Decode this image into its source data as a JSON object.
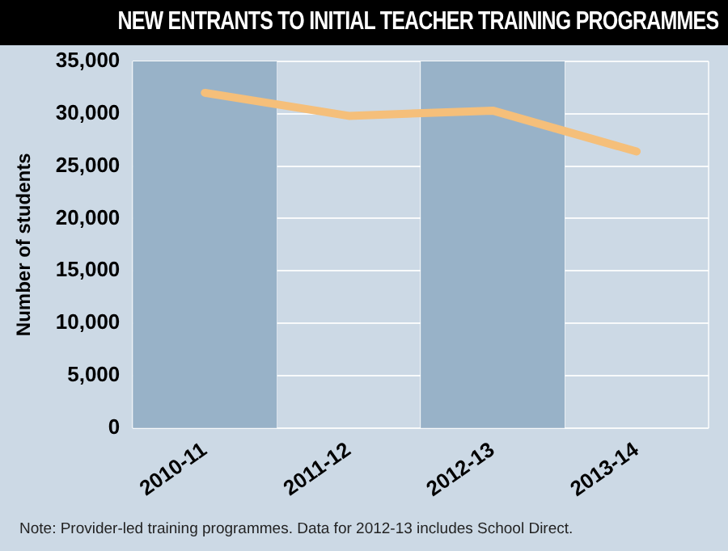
{
  "chart_data": {
    "type": "line",
    "title": "NEW ENTRANTS TO INITIAL TEACHER TRAINING PROGRAMMES",
    "ylabel": "Number of students",
    "categories": [
      "2010-11",
      "2011-12",
      "2012-13",
      "2013-14"
    ],
    "series": [
      {
        "color": "#f5bf7a",
        "values": [
          32000,
          29800,
          30300,
          26400
        ]
      }
    ],
    "ylim": [
      0,
      35000
    ],
    "yticks": [
      {
        "value": 0,
        "label": "0"
      },
      {
        "value": 5000,
        "label": "5,000"
      },
      {
        "value": 10000,
        "label": "10,000"
      },
      {
        "value": 15000,
        "label": "15,000"
      },
      {
        "value": 20000,
        "label": "20,000"
      },
      {
        "value": 25000,
        "label": "25,000"
      },
      {
        "value": 30000,
        "label": "30,000"
      },
      {
        "value": 35000,
        "label": "35,000"
      }
    ],
    "bands": [
      {
        "axis": "x",
        "from": "2010-11",
        "to": "2010-11",
        "color": "#98b2c8"
      },
      {
        "axis": "x",
        "from": "2012-13",
        "to": "2012-13",
        "color": "#98b2c8"
      }
    ],
    "grid": true,
    "legend": false,
    "marker": "none",
    "line_style": "solid",
    "annotations": [
      "Note: Provider-led training programmes. Data for 2012-13 includes School Direct."
    ]
  }
}
